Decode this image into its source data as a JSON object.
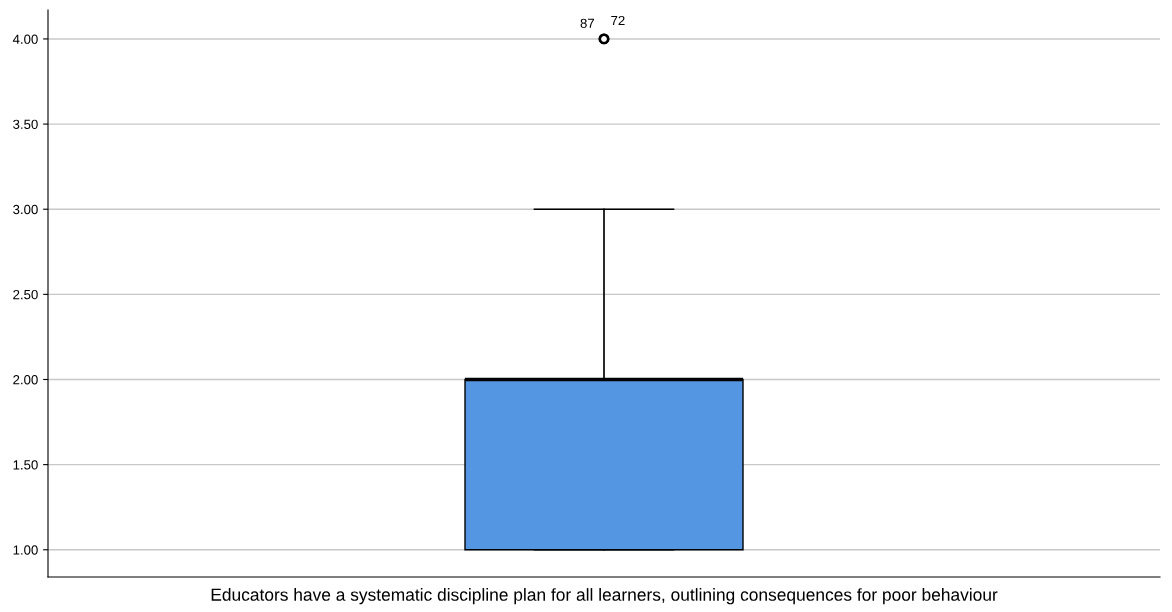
{
  "chart_data": {
    "type": "box",
    "categories": [
      "Educators have a systematic discipline plan for all learners, outlining consequences for poor behaviour"
    ],
    "boxes": [
      {
        "low": 1,
        "q1": 1,
        "median": 2,
        "q3": 2,
        "high": 3,
        "outliers": [
          4,
          4
        ]
      }
    ],
    "color": "#5596e3",
    "ylim": [
      0.84,
      4.17
    ],
    "yticks": [
      {
        "value": 1,
        "label": "1.00"
      },
      {
        "value": 1.5,
        "label": "1.50"
      },
      {
        "value": 2,
        "label": "2.00"
      },
      {
        "value": 2.5,
        "label": "2.50"
      },
      {
        "value": 3,
        "label": "3.00"
      },
      {
        "value": 3.5,
        "label": "3.50"
      },
      {
        "value": 4,
        "label": "4.00"
      }
    ],
    "grid": "y",
    "annotations": [
      "87",
      "72"
    ]
  }
}
